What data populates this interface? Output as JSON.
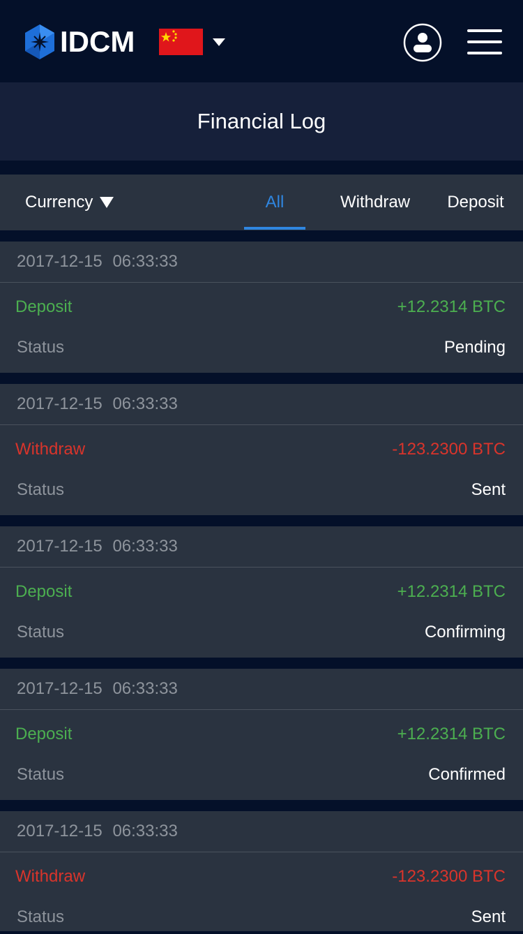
{
  "header": {
    "brand": "IDCM",
    "flag_icon": "china-flag-icon",
    "user_icon": "user-icon",
    "menu_icon": "hamburger-menu-icon"
  },
  "page": {
    "title": "Financial Log"
  },
  "filter": {
    "currency_label": "Currency",
    "tabs": [
      {
        "label": "All",
        "active": true
      },
      {
        "label": "Withdraw",
        "active": false
      },
      {
        "label": "Deposit",
        "active": false
      }
    ]
  },
  "colors": {
    "background": "#041029",
    "card": "#2a3340",
    "accent": "#2f86e0",
    "deposit": "#4caf50",
    "withdraw": "#d9342b"
  },
  "status_label": "Status",
  "records": [
    {
      "date": "2017-12-15",
      "time": "06:33:33",
      "type": "Deposit",
      "kind": "deposit",
      "amount": "+12.2314 BTC",
      "status": "Pending"
    },
    {
      "date": "2017-12-15",
      "time": "06:33:33",
      "type": "Withdraw",
      "kind": "withdraw",
      "amount": "-123.2300 BTC",
      "status": "Sent"
    },
    {
      "date": "2017-12-15",
      "time": "06:33:33",
      "type": "Deposit",
      "kind": "deposit",
      "amount": "+12.2314 BTC",
      "status": "Confirming"
    },
    {
      "date": "2017-12-15",
      "time": "06:33:33",
      "type": "Deposit",
      "kind": "deposit",
      "amount": "+12.2314 BTC",
      "status": "Confirmed"
    },
    {
      "date": "2017-12-15",
      "time": "06:33:33",
      "type": "Withdraw",
      "kind": "withdraw",
      "amount": "-123.2300 BTC",
      "status": "Sent"
    }
  ]
}
